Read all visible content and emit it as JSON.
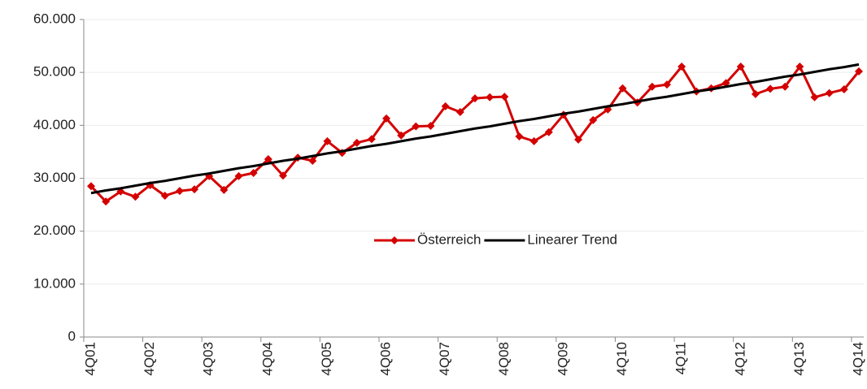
{
  "chart_data": {
    "type": "line",
    "categories": [
      "4Q01",
      null,
      null,
      null,
      "4Q02",
      null,
      null,
      null,
      "4Q03",
      null,
      null,
      null,
      "4Q04",
      null,
      null,
      null,
      "4Q05",
      null,
      null,
      null,
      "4Q06",
      null,
      null,
      null,
      "4Q07",
      null,
      null,
      null,
      "4Q08",
      null,
      null,
      null,
      "4Q09",
      null,
      null,
      null,
      "4Q10",
      null,
      null,
      null,
      "4Q11",
      null,
      null,
      null,
      "4Q12",
      null,
      null,
      null,
      "4Q13",
      null,
      null,
      null,
      "4Q14"
    ],
    "series": [
      {
        "name": "Österreich",
        "color": "#d40000",
        "marker": "diamond",
        "values": [
          28500,
          25600,
          27500,
          26500,
          28700,
          26700,
          27600,
          27900,
          30400,
          27800,
          30400,
          31000,
          33600,
          30500,
          33900,
          33300,
          37000,
          34800,
          36700,
          37400,
          41300,
          38100,
          39800,
          39900,
          43600,
          42500,
          45100,
          45300,
          45400,
          37900,
          37000,
          38700,
          42000,
          37300,
          41000,
          43000,
          47000,
          44300,
          47300,
          47700,
          51100,
          46400,
          47000,
          48000,
          51100,
          45900,
          46900,
          47300,
          51100,
          45300,
          46100,
          46800,
          50200
        ]
      },
      {
        "name": "Linearer Trend",
        "color": "#000000",
        "marker": "none",
        "values": [
          27200,
          27700,
          28100,
          28600,
          29100,
          29500,
          30000,
          30500,
          30900,
          31400,
          31900,
          32300,
          32800,
          33300,
          33700,
          34200,
          34700,
          35100,
          35600,
          36100,
          36500,
          37000,
          37500,
          37900,
          38400,
          38900,
          39400,
          39800,
          40300,
          40800,
          41200,
          41700,
          42200,
          42600,
          43100,
          43600,
          44000,
          44500,
          45000,
          45400,
          45900,
          46400,
          46800,
          47300,
          47800,
          48200,
          48700,
          49200,
          49600,
          50100,
          50600,
          51000,
          51500
        ]
      }
    ],
    "ylim": [
      0,
      60000
    ],
    "yticks": [
      0,
      {
        "value": 10000,
        "label": "10.000"
      },
      {
        "value": 20000,
        "label": "20.000"
      },
      {
        "value": 30000,
        "label": "30.000"
      },
      {
        "value": 40000,
        "label": "40.000"
      },
      {
        "value": 50000,
        "label": "50.000"
      },
      {
        "value": 60000,
        "label": "60.000"
      }
    ],
    "grid": true,
    "legend": "center"
  }
}
